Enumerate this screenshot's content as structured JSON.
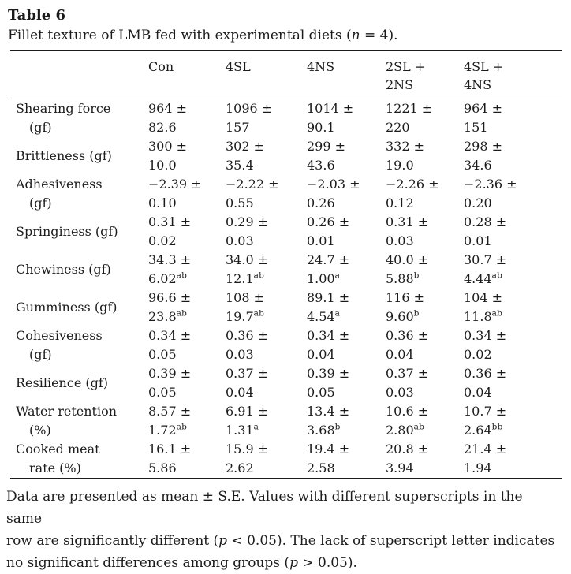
{
  "page": {
    "title": "Table 6",
    "caption": {
      "a": "Fillet texture of LMB fed with experimental diets (",
      "n": "n",
      "b": " = 4)."
    }
  },
  "table": {
    "columns": [
      {
        "l1": "Con",
        "l2": ""
      },
      {
        "l1": "4SL",
        "l2": ""
      },
      {
        "l1": "4NS",
        "l2": ""
      },
      {
        "l1": "2SL +",
        "l2": "2NS"
      },
      {
        "l1": "4SL +",
        "l2": "4NS"
      }
    ],
    "rows": [
      {
        "label1": "Shearing force",
        "label2": "(gf)",
        "cells": [
          {
            "l1": "964 ±",
            "l2": "82.6",
            "sup": ""
          },
          {
            "l1": "1096 ±",
            "l2": "157",
            "sup": ""
          },
          {
            "l1": "1014 ±",
            "l2": "90.1",
            "sup": ""
          },
          {
            "l1": "1221 ±",
            "l2": "220",
            "sup": ""
          },
          {
            "l1": "964 ±",
            "l2": "151",
            "sup": ""
          }
        ]
      },
      {
        "label1": "Brittleness (gf)",
        "label2": "",
        "cells": [
          {
            "l1": "300 ±",
            "l2": "10.0",
            "sup": ""
          },
          {
            "l1": "302 ±",
            "l2": "35.4",
            "sup": ""
          },
          {
            "l1": "299 ±",
            "l2": "43.6",
            "sup": ""
          },
          {
            "l1": "332 ±",
            "l2": "19.0",
            "sup": ""
          },
          {
            "l1": "298 ±",
            "l2": "34.6",
            "sup": ""
          }
        ]
      },
      {
        "label1": "Adhesiveness",
        "label2": "(gf)",
        "cells": [
          {
            "l1": "−2.39 ±",
            "l2": "0.10",
            "sup": ""
          },
          {
            "l1": "−2.22 ±",
            "l2": "0.55",
            "sup": ""
          },
          {
            "l1": "−2.03 ±",
            "l2": "0.26",
            "sup": ""
          },
          {
            "l1": "−2.26 ±",
            "l2": "0.12",
            "sup": ""
          },
          {
            "l1": "−2.36 ±",
            "l2": "0.20",
            "sup": ""
          }
        ]
      },
      {
        "label1": "Springiness (gf)",
        "label2": "",
        "cells": [
          {
            "l1": "0.31 ±",
            "l2": "0.02",
            "sup": ""
          },
          {
            "l1": "0.29 ±",
            "l2": "0.03",
            "sup": ""
          },
          {
            "l1": "0.26 ±",
            "l2": "0.01",
            "sup": ""
          },
          {
            "l1": "0.31 ±",
            "l2": "0.03",
            "sup": ""
          },
          {
            "l1": "0.28 ±",
            "l2": "0.01",
            "sup": ""
          }
        ]
      },
      {
        "label1": "Chewiness (gf)",
        "label2": "",
        "cells": [
          {
            "l1": "34.3 ±",
            "l2": "6.02",
            "sup": "ab"
          },
          {
            "l1": "34.0 ±",
            "l2": "12.1",
            "sup": "ab"
          },
          {
            "l1": "24.7 ±",
            "l2": "1.00",
            "sup": "a"
          },
          {
            "l1": "40.0 ±",
            "l2": "5.88",
            "sup": "b"
          },
          {
            "l1": "30.7 ±",
            "l2": "4.44",
            "sup": "ab"
          }
        ]
      },
      {
        "label1": "Gumminess (gf)",
        "label2": "",
        "cells": [
          {
            "l1": "96.6 ±",
            "l2": "23.8",
            "sup": "ab"
          },
          {
            "l1": "108 ±",
            "l2": "19.7",
            "sup": "ab"
          },
          {
            "l1": "89.1 ±",
            "l2": "4.54",
            "sup": "a"
          },
          {
            "l1": "116 ±",
            "l2": "9.60",
            "sup": "b"
          },
          {
            "l1": "104 ±",
            "l2": "11.8",
            "sup": "ab"
          }
        ]
      },
      {
        "label1": "Cohesiveness",
        "label2": "(gf)",
        "cells": [
          {
            "l1": "0.34 ±",
            "l2": "0.05",
            "sup": ""
          },
          {
            "l1": "0.36 ±",
            "l2": "0.03",
            "sup": ""
          },
          {
            "l1": "0.34 ±",
            "l2": "0.04",
            "sup": ""
          },
          {
            "l1": "0.36 ±",
            "l2": "0.04",
            "sup": ""
          },
          {
            "l1": "0.34 ±",
            "l2": "0.02",
            "sup": ""
          }
        ]
      },
      {
        "label1": "Resilience (gf)",
        "label2": "",
        "cells": [
          {
            "l1": "0.39 ±",
            "l2": "0.05",
            "sup": ""
          },
          {
            "l1": "0.37 ±",
            "l2": "0.04",
            "sup": ""
          },
          {
            "l1": "0.39 ±",
            "l2": "0.05",
            "sup": ""
          },
          {
            "l1": "0.37 ±",
            "l2": "0.03",
            "sup": ""
          },
          {
            "l1": "0.36 ±",
            "l2": "0.04",
            "sup": ""
          }
        ]
      },
      {
        "label1": "Water retention",
        "label2": "(%)",
        "cells": [
          {
            "l1": "8.57 ±",
            "l2": "1.72",
            "sup": "ab"
          },
          {
            "l1": "6.91 ±",
            "l2": "1.31",
            "sup": "a"
          },
          {
            "l1": "13.4 ±",
            "l2": "3.68",
            "sup": "b"
          },
          {
            "l1": "10.6 ±",
            "l2": "2.80",
            "sup": "ab"
          },
          {
            "l1": "10.7 ±",
            "l2": "2.64",
            "sup": "bb"
          }
        ]
      },
      {
        "label1": "Cooked meat",
        "label2": "rate (%)",
        "cells": [
          {
            "l1": "16.1 ±",
            "l2": "5.86",
            "sup": ""
          },
          {
            "l1": "15.9 ±",
            "l2": "2.62",
            "sup": ""
          },
          {
            "l1": "19.4 ±",
            "l2": "2.58",
            "sup": ""
          },
          {
            "l1": "20.8 ±",
            "l2": "3.94",
            "sup": ""
          },
          {
            "l1": "21.4 ±",
            "l2": "1.94",
            "sup": ""
          }
        ]
      }
    ]
  },
  "footnote": {
    "line1": "Data are presented as mean ± S.E. Values with different superscripts in the same",
    "line2a": "row are significantly different (",
    "line2p": "p",
    "line2b": " < 0.05). The lack of superscript letter indicates",
    "line3a": "no significant differences among groups (",
    "line3p": "p",
    "line3b": " > 0.05)."
  }
}
